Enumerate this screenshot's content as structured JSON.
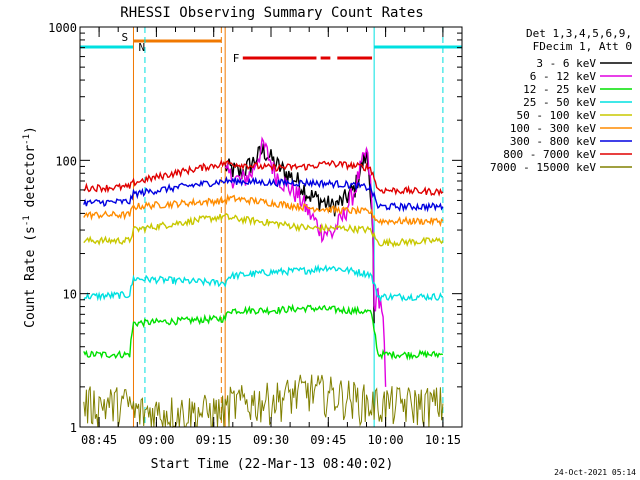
{
  "chart_data": {
    "type": "line",
    "title": "RHESSI Observing Summary Count Rates",
    "xlabel": "Start Time (22-Mar-13 08:40:02)",
    "ylabel": "Count Rate (s⁻¹ detector⁻¹)",
    "ylabel_main": "Count Rate (s",
    "ylabel_sup1": "-1",
    "ylabel_mid": " detector",
    "ylabel_sup2": "-1",
    "ylabel_end": ")",
    "yscale": "log",
    "ylim": [
      1,
      1000
    ],
    "xlim": [
      "08:40",
      "10:20"
    ],
    "y_tick_labels": [
      "1",
      "10",
      "100",
      "1000"
    ],
    "x_tick_labels": [
      "08:45",
      "09:00",
      "09:15",
      "09:30",
      "09:45",
      "10:00",
      "10:15"
    ],
    "legend_header": [
      "Det 1,3,4,5,6,9,",
      "FDecim 1, Att 0"
    ],
    "legend_position": "right",
    "timestamp": "24-Oct-2021 05:14",
    "flags": [
      {
        "label": "S",
        "color": "#f07800",
        "start": "08:54",
        "end": "09:17"
      },
      {
        "label": "N",
        "color": "#00e0e0",
        "start": "08:40",
        "end": "08:54"
      },
      {
        "label": "N",
        "color": "#00e0e0",
        "start": "09:57",
        "end": "10:20"
      },
      {
        "label": "F",
        "color": "#e00000",
        "start": "09:20",
        "end": "09:59"
      }
    ],
    "event_markers": [
      {
        "time": "08:54",
        "color": "#f07800",
        "style": "solid"
      },
      {
        "time": "08:57",
        "color": "#00e0e0",
        "style": "dashed"
      },
      {
        "time": "09:17",
        "color": "#f07800",
        "style": "dashed"
      },
      {
        "time": "09:18",
        "color": "#f07800",
        "style": "solid"
      },
      {
        "time": "09:57",
        "color": "#00e0e0",
        "style": "solid"
      },
      {
        "time": "10:15",
        "color": "#00e0e0",
        "style": "dashed"
      }
    ],
    "series": [
      {
        "name": "3 - 6 keV",
        "color": "#000000",
        "x": [
          "09:18",
          "09:22",
          "09:25",
          "09:28",
          "09:31",
          "09:34",
          "09:37",
          "09:40",
          "09:43",
          "09:46",
          "09:49",
          "09:52",
          "09:55",
          "09:56",
          "09:57"
        ],
        "y": [
          90,
          80,
          95,
          120,
          95,
          80,
          70,
          55,
          50,
          45,
          50,
          62,
          110,
          65,
          6
        ]
      },
      {
        "name": "6 - 12 keV",
        "color": "#e000e0",
        "x": [
          "09:18",
          "09:22",
          "09:25",
          "09:28",
          "09:31",
          "09:34",
          "09:37",
          "09:40",
          "09:43",
          "09:46",
          "09:49",
          "09:52",
          "09:55",
          "09:56",
          "09:57",
          "09:58",
          "09:59",
          "10:00"
        ],
        "y": [
          80,
          70,
          80,
          130,
          80,
          65,
          55,
          40,
          30,
          28,
          38,
          60,
          115,
          70,
          8,
          10,
          8,
          2
        ]
      },
      {
        "name": "12 - 25 keV",
        "color": "#00e000",
        "x": [
          "08:41",
          "08:53",
          "08:54",
          "09:18",
          "09:19",
          "09:30",
          "09:40",
          "09:50",
          "09:56",
          "09:58",
          "10:15"
        ],
        "y": [
          3.5,
          3.5,
          6,
          6.5,
          7.5,
          7.5,
          7.8,
          7.5,
          7.3,
          3.5,
          3.5
        ]
      },
      {
        "name": "25 - 50 keV",
        "color": "#00e0e0",
        "x": [
          "08:41",
          "08:53",
          "08:54",
          "09:18",
          "09:19",
          "09:30",
          "09:40",
          "09:45",
          "09:50",
          "09:56",
          "09:58",
          "10:15"
        ],
        "y": [
          9.5,
          9.8,
          13,
          12,
          13.5,
          14.5,
          15,
          15.8,
          15,
          14,
          9.5,
          9.5
        ]
      },
      {
        "name": "50 - 100 keV",
        "color": "#c8c800",
        "x": [
          "08:41",
          "08:53",
          "08:54",
          "09:18",
          "09:19",
          "09:30",
          "09:40",
          "09:50",
          "09:56",
          "09:58",
          "10:15"
        ],
        "y": [
          25,
          25,
          30,
          38,
          37,
          34,
          31,
          31,
          30,
          24,
          25
        ]
      },
      {
        "name": "100 - 300 keV",
        "color": "#ff8c00",
        "x": [
          "08:41",
          "08:53",
          "08:54",
          "09:18",
          "09:19",
          "09:30",
          "09:40",
          "09:50",
          "09:56",
          "09:58",
          "10:15"
        ],
        "y": [
          39,
          39,
          45,
          50,
          52,
          48,
          44,
          42,
          41,
          35,
          35
        ]
      },
      {
        "name": "300 - 800 keV",
        "color": "#0000e0",
        "x": [
          "08:41",
          "08:53",
          "08:54",
          "09:18",
          "09:19",
          "09:30",
          "09:40",
          "09:50",
          "09:56",
          "09:58",
          "10:15"
        ],
        "y": [
          48,
          49,
          56,
          70,
          70,
          68,
          68,
          66,
          62,
          45,
          45
        ]
      },
      {
        "name": "800 - 7000 keV",
        "color": "#e00000",
        "x": [
          "08:41",
          "08:53",
          "08:54",
          "09:18",
          "09:19",
          "09:30",
          "09:40",
          "09:45",
          "09:50",
          "09:56",
          "09:58",
          "10:15"
        ],
        "y": [
          62,
          63,
          68,
          95,
          95,
          88,
          90,
          95,
          92,
          88,
          60,
          58
        ]
      },
      {
        "name": "7000 - 15000 keV",
        "color": "#808000",
        "x": [
          "08:41",
          "08:53",
          "08:54",
          "09:18",
          "09:19",
          "09:30",
          "09:40",
          "09:50",
          "09:56",
          "09:58",
          "10:15"
        ],
        "y": [
          1.5,
          1.5,
          1.3,
          1.3,
          1.5,
          1.6,
          1.9,
          1.7,
          1.5,
          1.5,
          1.5
        ]
      }
    ]
  }
}
